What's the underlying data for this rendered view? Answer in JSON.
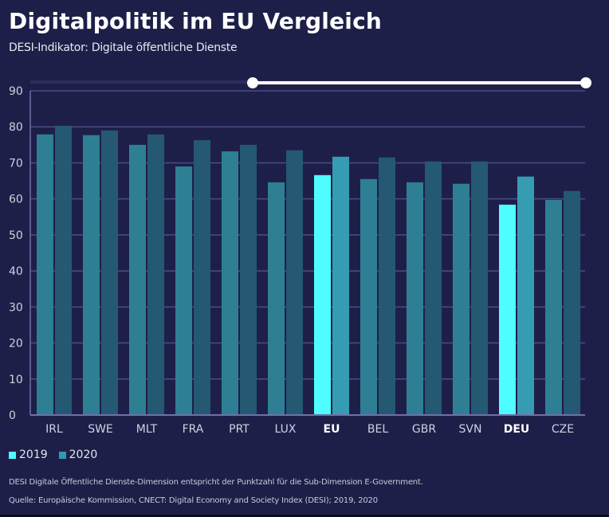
{
  "header": {
    "title": "Digitalpolitik im EU Vergleich",
    "subtitle": "DESI-Indikator: Digitale öffentliche Dienste"
  },
  "legend": [
    {
      "label": "2019",
      "color": "#4ffcff"
    },
    {
      "label": "2020",
      "color": "#2f9bb0"
    }
  ],
  "notes": {
    "definition": "DESI Digitale Öffentliche Dienste-Dimension entspricht der Punktzahl für die Sub-Dimension E-Government.",
    "source": "Quelle: Europäische Kommission, CNECT: Digital Economy and Society Index (DESI); 2019, 2020"
  },
  "colors": {
    "background": "#1e1f48",
    "grid": "#4b4c86",
    "bar_2019": "#2e7f94",
    "bar_2020": "#245873",
    "highlight_2019": "#4ffcff",
    "highlight_2020": "#369cb2",
    "tick_text": "#d0d0e0",
    "slider": "#ffffff"
  },
  "range_slider": {
    "start": "2019",
    "end": "2020"
  },
  "chart_data": {
    "type": "bar",
    "title": "Digitalpolitik im EU Vergleich",
    "subtitle": "DESI-Indikator: Digitale öffentliche Dienste",
    "xlabel": "",
    "ylabel": "",
    "ylim": [
      0,
      90
    ],
    "yticks": [
      0,
      10,
      20,
      30,
      40,
      50,
      60,
      70,
      80,
      90
    ],
    "grid": true,
    "legend_position": "bottom-left",
    "categories": [
      "IRL",
      "SWE",
      "MLT",
      "FRA",
      "PRT",
      "LUX",
      "EU",
      "BEL",
      "GBR",
      "SVN",
      "DEU",
      "CZE"
    ],
    "highlighted": [
      "EU",
      "DEU"
    ],
    "series": [
      {
        "name": "2019",
        "values": [
          77.9,
          77.7,
          75.0,
          69.0,
          73.2,
          64.6,
          66.6,
          65.5,
          64.6,
          64.2,
          58.4,
          59.7
        ]
      },
      {
        "name": "2020",
        "values": [
          80.3,
          79.0,
          77.9,
          76.3,
          75.0,
          73.5,
          71.7,
          71.5,
          70.4,
          70.4,
          66.2,
          62.2
        ]
      }
    ]
  }
}
